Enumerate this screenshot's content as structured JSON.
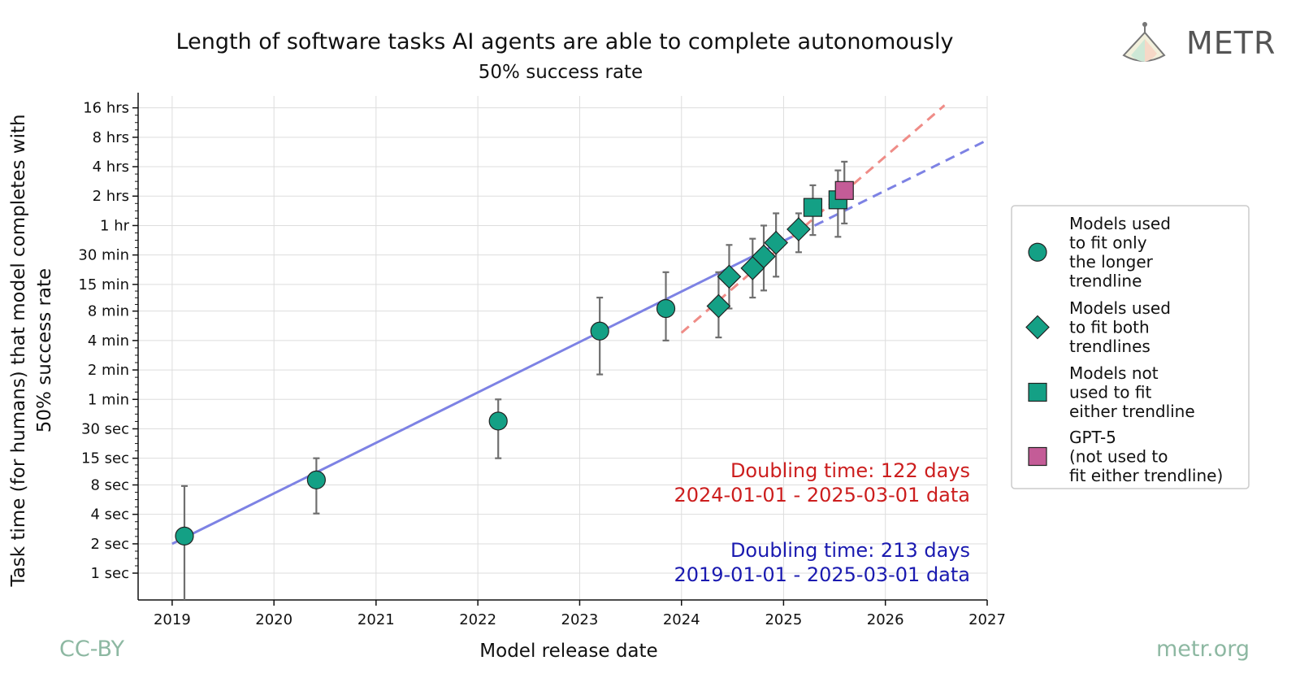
{
  "header": {
    "title": "Length of software tasks AI agents are able to complete autonomously",
    "subtitle": "50% success rate"
  },
  "brand": {
    "name": "METR",
    "logo_icon": "metr-logo-icon"
  },
  "footer": {
    "license": "CC-BY",
    "site": "metr.org"
  },
  "colors": {
    "marker_fill": "#14a085",
    "gpt5_fill": "#c45c97",
    "long_trend": "#7d82e4",
    "short_trend": "#ef8c87",
    "error_bar": "#6f6f6f",
    "short_anno": "#cc1e1e",
    "long_anno": "#1a1ab0",
    "footer": "#8db8a2"
  },
  "annotations": {
    "short": {
      "line1": "Doubling time: 122 days",
      "line2": "2024-01-01 - 2025-03-01 data"
    },
    "long": {
      "line1": "Doubling time: 213 days",
      "line2": "2019-01-01 - 2025-03-01 data"
    }
  },
  "legend": {
    "placement": "right",
    "items": [
      {
        "marker": "circle",
        "lines": [
          "Models used",
          "to fit only",
          "the longer",
          "trendline"
        ]
      },
      {
        "marker": "diamond",
        "lines": [
          "Models used",
          "to fit both",
          "trendlines"
        ]
      },
      {
        "marker": "square",
        "lines": [
          "Models not",
          "used to fit",
          "either trendline"
        ]
      },
      {
        "marker": "square-gpt5",
        "lines": [
          "GPT-5",
          "(not used to",
          "fit either trendline)"
        ]
      }
    ]
  },
  "chart_data": {
    "type": "scatter",
    "title": "Length of software tasks AI agents are able to complete autonomously",
    "subtitle": "50% success rate",
    "xlabel": "Model release date",
    "ylabel": "Task time (for humans) that model completes with 50% success rate",
    "ylabel_lines": [
      "Task time (for humans) that model completes with",
      "50% success rate"
    ],
    "yscale": "log2",
    "y_unit": "minutes",
    "xlim": [
      "2018-09-01",
      "2027-01-01"
    ],
    "ylim": [
      0.0083,
      20000
    ],
    "grid": true,
    "x_ticks": [
      {
        "value": "2019-01-01",
        "label": "2019"
      },
      {
        "value": "2020-01-01",
        "label": "2020"
      },
      {
        "value": "2021-01-01",
        "label": "2021"
      },
      {
        "value": "2022-01-01",
        "label": "2022"
      },
      {
        "value": "2023-01-01",
        "label": "2023"
      },
      {
        "value": "2024-01-01",
        "label": "2024"
      },
      {
        "value": "2025-01-01",
        "label": "2025"
      },
      {
        "value": "2026-01-01",
        "label": "2026"
      },
      {
        "value": "2027-01-01",
        "label": "2027"
      }
    ],
    "y_ticks": [
      {
        "value": 0.0167,
        "label": "1 sec"
      },
      {
        "value": 0.0333,
        "label": "2 sec"
      },
      {
        "value": 0.0667,
        "label": "4 sec"
      },
      {
        "value": 0.1333,
        "label": "8 sec"
      },
      {
        "value": 0.25,
        "label": "15 sec"
      },
      {
        "value": 0.5,
        "label": "30 sec"
      },
      {
        "value": 1,
        "label": "1 min"
      },
      {
        "value": 2,
        "label": "2 min"
      },
      {
        "value": 4,
        "label": "4 min"
      },
      {
        "value": 8,
        "label": "8 min"
      },
      {
        "value": 15,
        "label": "15 min"
      },
      {
        "value": 30,
        "label": "30 min"
      },
      {
        "value": 60,
        "label": "1 hr"
      },
      {
        "value": 120,
        "label": "2 hrs"
      },
      {
        "value": 240,
        "label": "4 hrs"
      },
      {
        "value": 480,
        "label": "8 hrs"
      },
      {
        "value": 960,
        "label": "16 hrs"
      }
    ],
    "points": [
      {
        "date": "2019-02-14",
        "minutes": 0.04,
        "low": 0.0083,
        "high": 0.13,
        "marker": "circle"
      },
      {
        "date": "2020-06-01",
        "minutes": 0.15,
        "low": 0.068,
        "high": 0.25,
        "marker": "circle"
      },
      {
        "date": "2022-03-15",
        "minutes": 0.6,
        "low": 0.25,
        "high": 1.0,
        "marker": "circle"
      },
      {
        "date": "2023-03-14",
        "minutes": 5,
        "low": 1.8,
        "high": 11,
        "marker": "circle"
      },
      {
        "date": "2023-11-06",
        "minutes": 8.5,
        "low": 4.0,
        "high": 20,
        "marker": "circle"
      },
      {
        "date": "2024-05-13",
        "minutes": 9,
        "low": 4.3,
        "high": 20,
        "marker": "diamond"
      },
      {
        "date": "2024-06-20",
        "minutes": 18,
        "low": 8.5,
        "high": 38,
        "marker": "diamond"
      },
      {
        "date": "2024-09-12",
        "minutes": 22,
        "low": 11,
        "high": 44,
        "marker": "diamond"
      },
      {
        "date": "2024-10-22",
        "minutes": 29,
        "low": 13,
        "high": 60,
        "marker": "diamond"
      },
      {
        "date": "2024-12-05",
        "minutes": 40,
        "low": 18,
        "high": 80,
        "marker": "diamond"
      },
      {
        "date": "2025-02-24",
        "minutes": 55,
        "low": 32,
        "high": 80,
        "marker": "diamond"
      },
      {
        "date": "2025-04-16",
        "minutes": 92,
        "low": 48,
        "high": 155,
        "marker": "square"
      },
      {
        "date": "2025-07-15",
        "minutes": 110,
        "low": 46,
        "high": 220,
        "marker": "square"
      },
      {
        "date": "2025-08-07",
        "minutes": 137,
        "low": 63,
        "high": 270,
        "marker": "square-gpt5"
      }
    ],
    "trendlines": [
      {
        "start": "2019-01-01",
        "end": "2026-12-31",
        "start_minutes": 0.0333,
        "doubling_days": 213,
        "solid_until": "2025-03-01"
      },
      {
        "start": "2024-01-01",
        "end": "2026-08-01",
        "start_minutes": 4.8,
        "doubling_days": 122,
        "solid_until": "2024-01-01"
      }
    ]
  }
}
